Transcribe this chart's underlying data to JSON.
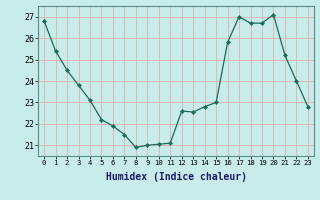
{
  "x": [
    0,
    1,
    2,
    3,
    4,
    5,
    6,
    7,
    8,
    9,
    10,
    11,
    12,
    13,
    14,
    15,
    16,
    17,
    18,
    19,
    20,
    21,
    22,
    23
  ],
  "y": [
    26.8,
    25.4,
    24.5,
    23.8,
    23.1,
    22.2,
    21.9,
    21.5,
    20.9,
    21.0,
    21.05,
    21.1,
    22.6,
    22.55,
    22.8,
    23.0,
    25.8,
    27.0,
    26.7,
    26.7,
    27.1,
    25.2,
    24.0,
    22.8
  ],
  "bg_color": "#c8ece9",
  "grid_color": "#ddb8b8",
  "line_color": "#1a6b5a",
  "marker_color": "#1a6b5a",
  "xlabel": "Humidex (Indice chaleur)",
  "ylim": [
    20.5,
    27.5
  ],
  "xlim": [
    -0.5,
    23.5
  ],
  "yticks": [
    21,
    22,
    23,
    24,
    25,
    26,
    27
  ],
  "xtick_labels": [
    "0",
    "1",
    "2",
    "3",
    "4",
    "5",
    "6",
    "7",
    "8",
    "9",
    "10",
    "11",
    "12",
    "13",
    "14",
    "15",
    "16",
    "17",
    "18",
    "19",
    "20",
    "21",
    "22",
    "23"
  ]
}
